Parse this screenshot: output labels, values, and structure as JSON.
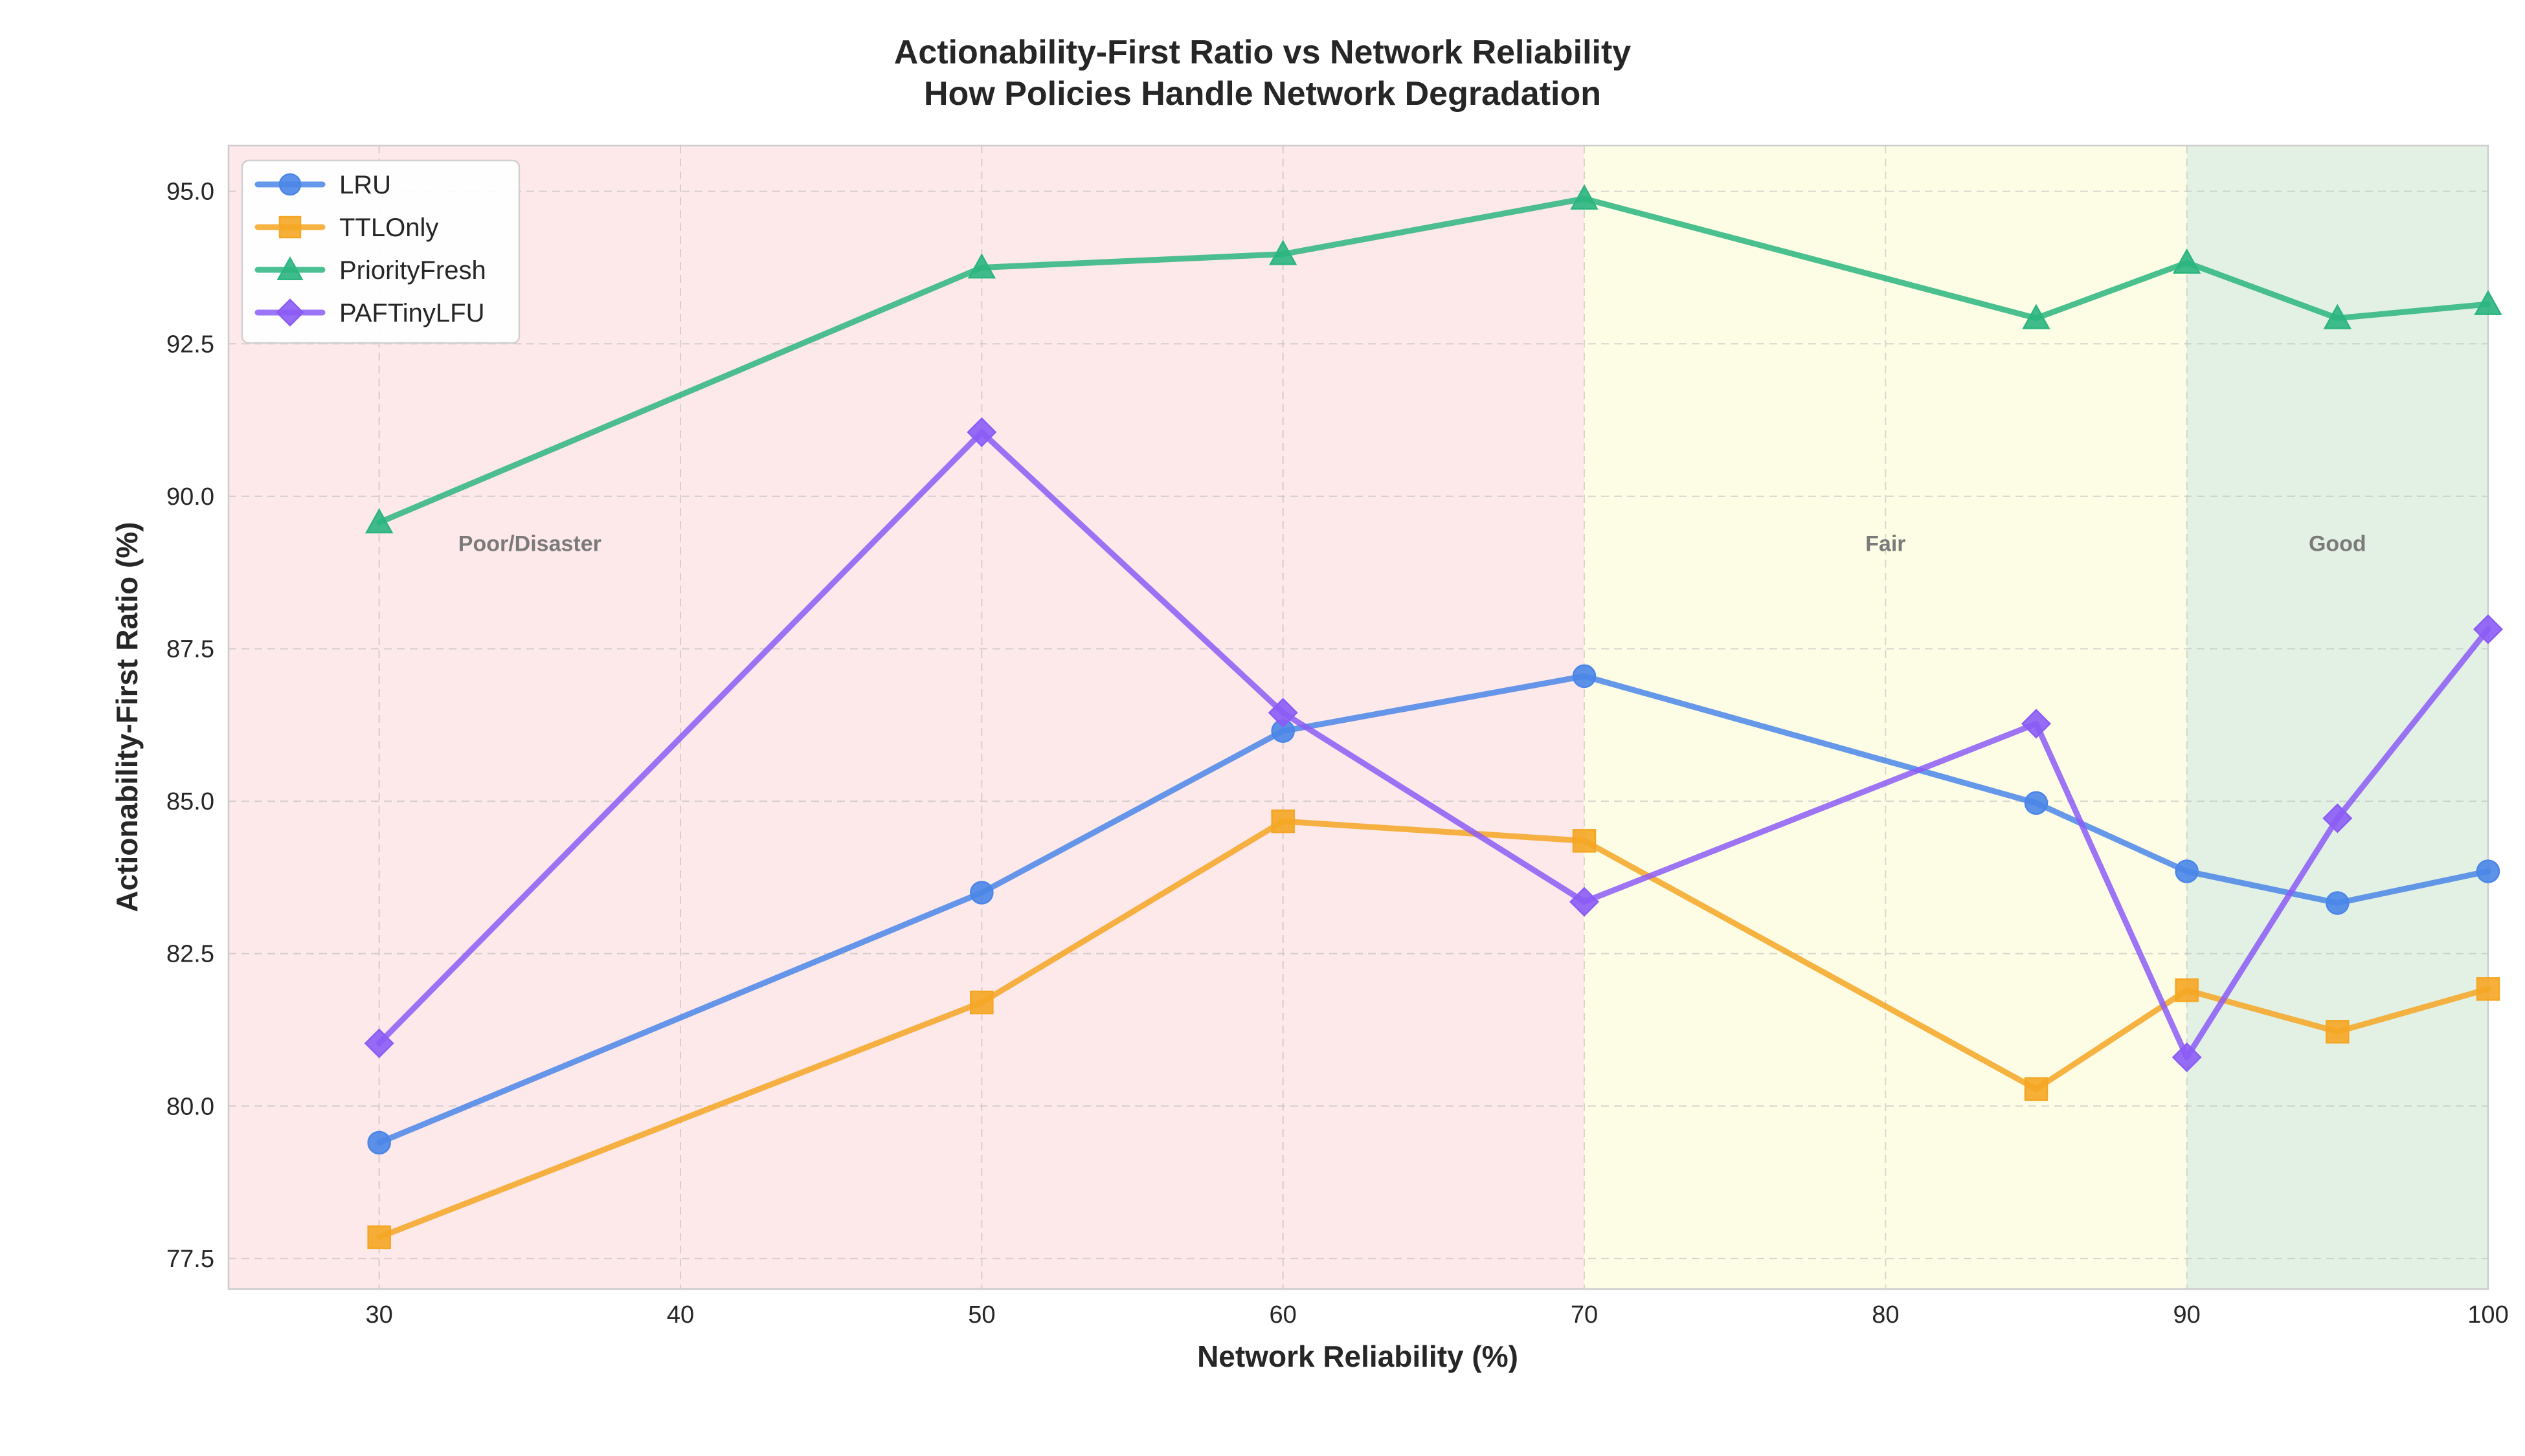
{
  "chart_data": {
    "type": "line",
    "title": "Actionability-First Ratio vs Network Reliability",
    "subtitle": "How Policies Handle Network Degradation",
    "xlabel": "Network Reliability (%)",
    "ylabel": "Actionability-First Ratio (%)",
    "xlim": [
      25,
      100
    ],
    "ylim": [
      77.0,
      95.75
    ],
    "xticks": [
      30,
      40,
      50,
      60,
      70,
      80,
      90,
      100
    ],
    "xtick_labels": [
      "30",
      "40",
      "50",
      "60",
      "70",
      "80",
      "90",
      "100"
    ],
    "yticks": [
      77.5,
      80.0,
      82.5,
      85.0,
      87.5,
      90.0,
      92.5,
      95.0
    ],
    "ytick_labels": [
      "77.5",
      "80.0",
      "82.5",
      "85.0",
      "87.5",
      "90.0",
      "92.5",
      "95.0"
    ],
    "grid": true,
    "legend_position": "top-left",
    "zones": [
      {
        "label": "Poor/Disaster",
        "from": 25,
        "to": 70,
        "color": "#fde8ea",
        "label_x": 35
      },
      {
        "label": "Fair",
        "from": 70,
        "to": 90,
        "color": "#fdfde6",
        "label_x": 80
      },
      {
        "label": "Good",
        "from": 90,
        "to": 100,
        "color": "#e3f1e4",
        "label_x": 95
      }
    ],
    "zone_label_y": 89.1,
    "x": [
      30,
      50,
      60,
      70,
      85,
      90,
      95,
      100
    ],
    "series": [
      {
        "name": "LRU",
        "color": "#4a86e8",
        "marker": "circle",
        "values": [
          79.4,
          83.5,
          86.15,
          87.05,
          84.97,
          83.85,
          83.33,
          83.85
        ]
      },
      {
        "name": "TTLOnly",
        "color": "#f5a623",
        "marker": "square",
        "values": [
          77.85,
          81.7,
          84.67,
          84.35,
          80.28,
          81.9,
          81.22,
          81.92
        ]
      },
      {
        "name": "PriorityFresh",
        "color": "#2bb57f",
        "marker": "triangle",
        "values": [
          89.57,
          93.75,
          93.97,
          94.88,
          92.92,
          93.83,
          92.92,
          93.15
        ]
      },
      {
        "name": "PAFTinyLFU",
        "color": "#8b5cf6",
        "marker": "diamond",
        "values": [
          81.03,
          91.05,
          86.45,
          83.35,
          86.27,
          80.8,
          84.72,
          87.82
        ]
      }
    ]
  }
}
